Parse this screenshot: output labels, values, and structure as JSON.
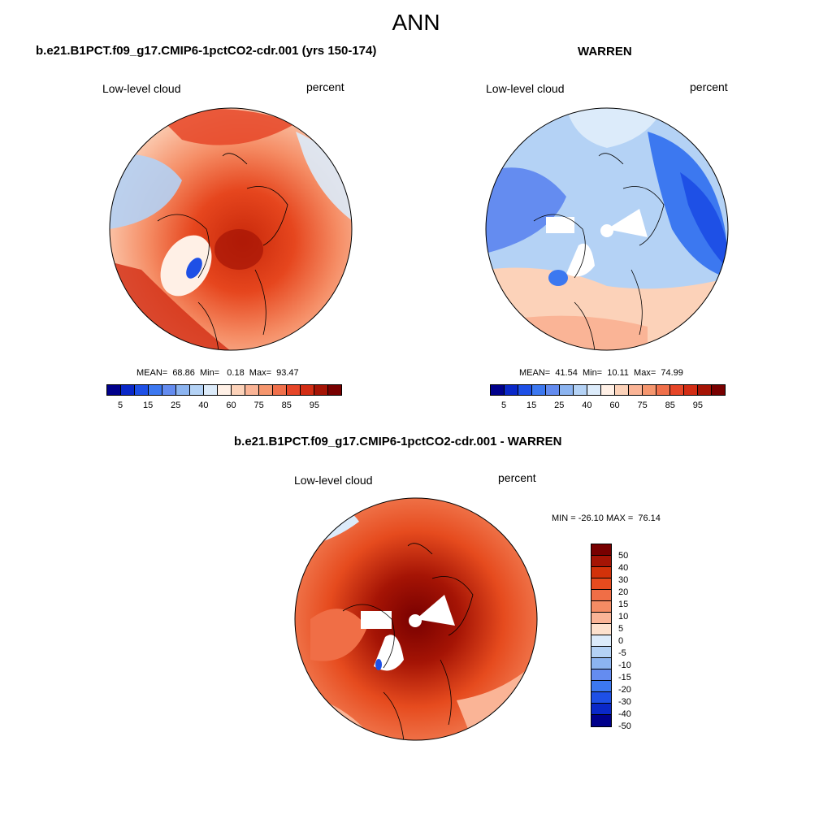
{
  "page": {
    "title": "ANN"
  },
  "panels": {
    "model": {
      "title": "b.e21.B1PCT.f09_g17.CMIP6-1pctCO2-cdr.001 (yrs 150-174)",
      "left_label": "Low-level cloud",
      "right_label": "percent",
      "stats": "MEAN=  68.86  Min=   0.18  Max=  93.47",
      "tone": "red"
    },
    "obs": {
      "title": "WARREN",
      "left_label": "Low-level cloud",
      "right_label": "percent",
      "stats": "MEAN=  41.54  Min=  10.11  Max=  74.99",
      "tone": "blue"
    },
    "diff": {
      "title": "b.e21.B1PCT.f09_g17.CMIP6-1pctCO2-cdr.001 - WARREN",
      "left_label": "Low-level cloud",
      "right_label": "percent",
      "stats": "MIN = -26.10 MAX =  76.14",
      "tone": "diff"
    }
  },
  "colorbar_abs": {
    "colors": [
      "#00008b",
      "#0a28c8",
      "#1e50e6",
      "#3c78f0",
      "#648cf0",
      "#8cb4f0",
      "#b4d2f5",
      "#dcebfa",
      "#fff0e6",
      "#fcd2b9",
      "#fab496",
      "#f5966e",
      "#f0704b",
      "#e64628",
      "#d22d14",
      "#a51405",
      "#780000"
    ],
    "ticks": [
      "5",
      "15",
      "25",
      "40",
      "60",
      "75",
      "85",
      "95"
    ]
  },
  "colorbar_diff": {
    "colors": [
      "#780000",
      "#a51405",
      "#d2320a",
      "#e64b1e",
      "#f06e46",
      "#f58c64",
      "#fab496",
      "#fde1cd",
      "#dcebfa",
      "#b4d2f5",
      "#8cb4f0",
      "#648cf0",
      "#3c78f0",
      "#1e50e6",
      "#0a28c8",
      "#00008b"
    ],
    "ticks": [
      "50",
      "40",
      "30",
      "20",
      "15",
      "10",
      "5",
      "0",
      "-5",
      "-10",
      "-15",
      "-20",
      "-30",
      "-40",
      "-50"
    ]
  }
}
